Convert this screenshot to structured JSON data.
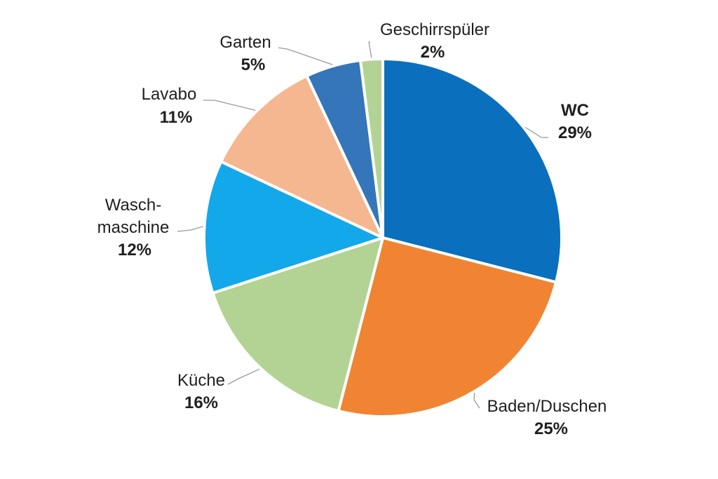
{
  "chart_data": {
    "type": "pie",
    "title": "",
    "slices": [
      {
        "name": "WC",
        "value": 29,
        "value_label": "29%",
        "color": "#0a6fbd"
      },
      {
        "name": "Baden/Duschen",
        "value": 25,
        "value_label": "25%",
        "color": "#f08432"
      },
      {
        "name": "Küche",
        "value": 16,
        "value_label": "16%",
        "color": "#b3d394"
      },
      {
        "name": "Wasch-",
        "name2": "maschine",
        "value": 12,
        "value_label": "12%",
        "color": "#13a8ea"
      },
      {
        "name": "Lavabo",
        "value": 11,
        "value_label": "11%",
        "color": "#f5b78f"
      },
      {
        "name": "Garten",
        "value": 5,
        "value_label": "5%",
        "color": "#3476b9"
      },
      {
        "name": "Geschirrspüler",
        "value": 2,
        "value_label": "2%",
        "color": "#b3d394"
      }
    ],
    "start_angle_deg": 0,
    "direction": "clockwise",
    "legend": "none",
    "label_style": "outside with leader lines"
  }
}
